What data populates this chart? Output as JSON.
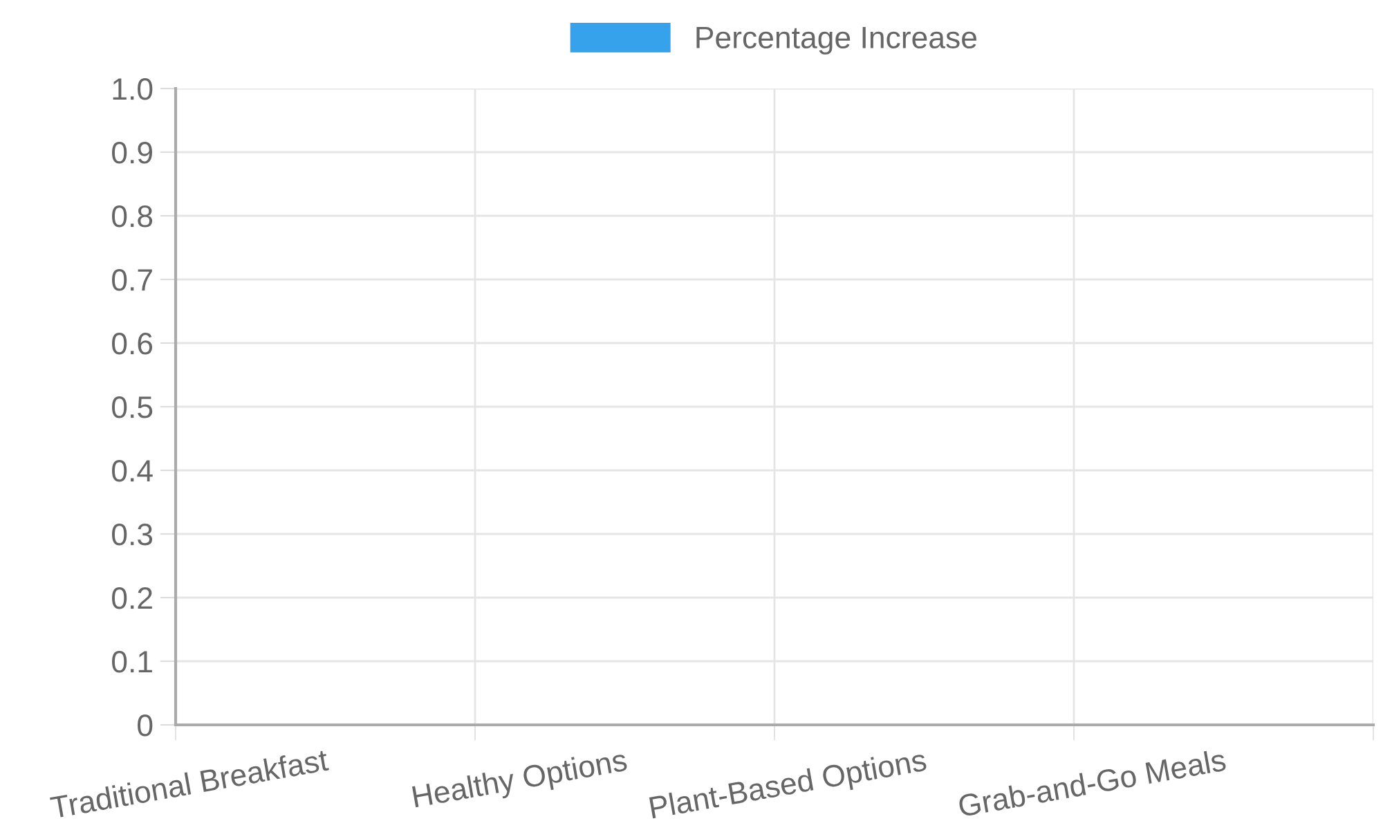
{
  "chart_data": {
    "type": "bar",
    "categories": [
      "Traditional Breakfast",
      "Healthy Options",
      "Plant-Based Options",
      "Grab-and-Go Meals"
    ],
    "series": [
      {
        "name": "Percentage Increase",
        "color": "#36a2eb",
        "values": [
          null,
          null,
          null,
          null
        ]
      }
    ],
    "ylim": [
      0,
      1
    ],
    "yticks": [
      0,
      0.1,
      0.2,
      0.3,
      0.4,
      0.5,
      0.6,
      0.7,
      0.8,
      0.9,
      {
        "value": 1,
        "label": "1.0"
      }
    ],
    "grid": true,
    "legend": "top"
  }
}
